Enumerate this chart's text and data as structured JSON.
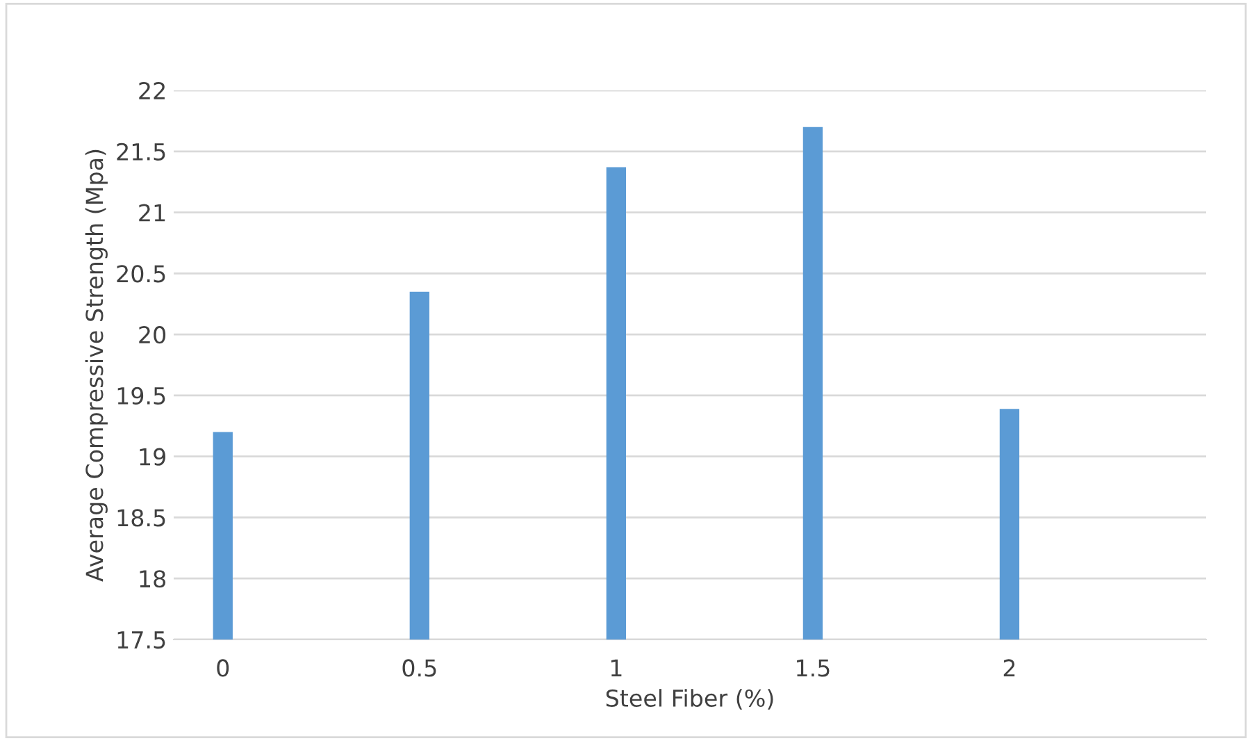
{
  "chart_data": {
    "type": "bar",
    "xlabel": "Steel Fiber (%)",
    "ylabel": "Average Compressive Strength (Mpa)",
    "categories": [
      "0",
      "0.5",
      "1",
      "1.5",
      "2"
    ],
    "values": [
      19.2,
      20.35,
      21.37,
      21.7,
      19.39
    ],
    "color": "#5b9bd5",
    "ylim": [
      17.5,
      22
    ],
    "yticks": [
      17.5,
      18,
      18.5,
      19,
      19.5,
      20,
      20.5,
      21,
      21.5,
      22
    ],
    "grid": "y",
    "legend": false
  }
}
